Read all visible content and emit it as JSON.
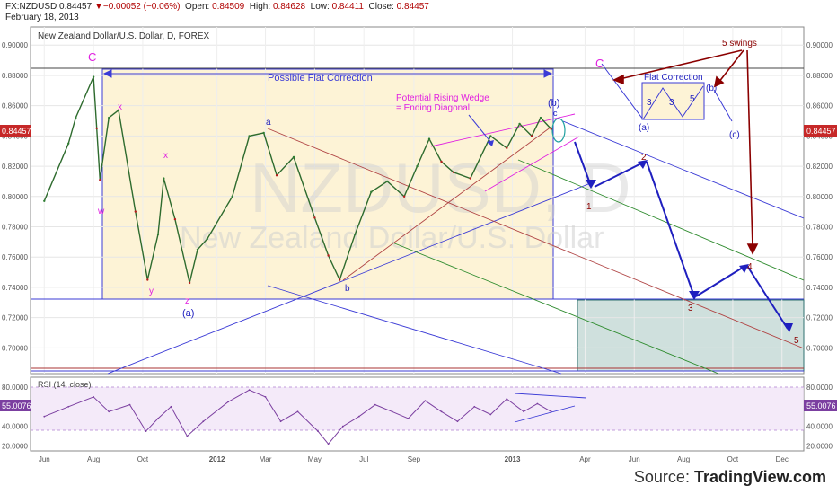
{
  "header": {
    "symbol": "FX:NZDUSD",
    "last": "0.84457",
    "change": "−0.00052 (−0.06%)",
    "open_label": "Open:",
    "open": "0.84509",
    "high_label": "High:",
    "high": "0.84628",
    "low_label": "Low:",
    "low": "0.84411",
    "close_label": "Close:",
    "close": "0.84457",
    "date": "February 18, 2013"
  },
  "chart_title": "New Zealand Dollar/U.S. Dollar, D, FOREX",
  "watermark": {
    "symbol": "NZDUSD, D",
    "name": "New Zealand Dollar/U.S. Dollar"
  },
  "price_badge": "0.84457",
  "rsi_badge": "55.0076",
  "source": {
    "prefix": "Source: ",
    "brand": "TradingView.com"
  },
  "colors": {
    "up": "#2e7d32",
    "down": "#b71c1c",
    "rsi": "#7b3fa0",
    "annotation_blue": "#1f1fbf",
    "annotation_magenta": "#e020e0",
    "annotation_red": "#8b0000"
  },
  "chart_data": [
    {
      "type": "line",
      "title": "New Zealand Dollar/U.S. Dollar, D, FOREX",
      "ylim": [
        0.683,
        0.912
      ],
      "yticks": [
        "0.90000",
        "0.88000",
        "0.86000",
        "0.84000",
        "0.82000",
        "0.80000",
        "0.78000",
        "0.76000",
        "0.74000",
        "0.72000",
        "0.70000"
      ],
      "xticks": [
        "Jun",
        "Aug",
        "Oct",
        "2012",
        "Mar",
        "May",
        "Jul",
        "Sep",
        "2013",
        "Apr",
        "Jun",
        "Aug",
        "Oct",
        "Dec"
      ],
      "x": [
        "2011-06-01",
        "2011-07-01",
        "2011-07-10",
        "2011-08-01",
        "2011-08-05",
        "2011-08-09",
        "2011-08-20",
        "2011-09-01",
        "2011-09-22",
        "2011-10-07",
        "2011-10-20",
        "2011-10-27",
        "2011-11-10",
        "2011-11-28",
        "2011-12-08",
        "2011-12-20",
        "2012-01-20",
        "2012-02-10",
        "2012-02-28",
        "2012-03-15",
        "2012-04-05",
        "2012-05-01",
        "2012-05-18",
        "2012-06-01",
        "2012-06-20",
        "2012-07-10",
        "2012-07-30",
        "2012-08-20",
        "2012-09-05",
        "2012-09-20",
        "2012-10-05",
        "2012-10-20",
        "2012-11-10",
        "2012-12-05",
        "2012-12-25",
        "2013-01-10",
        "2013-01-25",
        "2013-02-05",
        "2013-02-18"
      ],
      "series": [
        {
          "values": [
            0.797,
            0.835,
            0.852,
            0.879,
            0.845,
            0.811,
            0.852,
            0.857,
            0.79,
            0.745,
            0.775,
            0.812,
            0.785,
            0.743,
            0.765,
            0.772,
            0.8,
            0.84,
            0.842,
            0.814,
            0.826,
            0.786,
            0.761,
            0.745,
            0.775,
            0.803,
            0.81,
            0.8,
            0.82,
            0.838,
            0.823,
            0.816,
            0.812,
            0.84,
            0.832,
            0.848,
            0.84,
            0.852,
            0.8446
          ]
        }
      ],
      "annotations": {
        "c_top": "C",
        "c_projection": "C",
        "flat_correction_box": "Possible Flat Correction",
        "wedge": [
          "Potential Rising Wedge",
          "= Ending Diagonal"
        ],
        "wave_labels": [
          "x",
          "x",
          "w",
          "y",
          "z",
          "(a)",
          "a",
          "b",
          "(b)",
          "c"
        ],
        "projection_waves": [
          "1",
          "2",
          "3",
          "4",
          "5"
        ],
        "swings": "5 swings",
        "inset_title": "Flat Correction",
        "inset_labels": [
          "(a)",
          "3",
          "3",
          "5",
          "(b)",
          "(c)"
        ]
      }
    },
    {
      "type": "line",
      "title": "RSI (14, close)",
      "ylim": [
        15,
        90
      ],
      "yticks": [
        "80.0000",
        "60.0000",
        "40.0000",
        "20.0000"
      ],
      "x": [
        "2011-06-01",
        "2011-07-01",
        "2011-08-01",
        "2011-08-20",
        "2011-09-15",
        "2011-10-05",
        "2011-10-20",
        "2011-11-05",
        "2011-11-25",
        "2011-12-15",
        "2012-01-15",
        "2012-02-10",
        "2012-03-01",
        "2012-03-20",
        "2012-04-10",
        "2012-05-05",
        "2012-05-18",
        "2012-06-05",
        "2012-06-25",
        "2012-07-15",
        "2012-08-05",
        "2012-08-25",
        "2012-09-15",
        "2012-10-05",
        "2012-10-25",
        "2012-11-15",
        "2012-12-05",
        "2012-12-25",
        "2013-01-15",
        "2013-02-01",
        "2013-02-18"
      ],
      "series": [
        {
          "name": "RSI (14, close)",
          "values": [
            50,
            60,
            70,
            55,
            62,
            35,
            48,
            60,
            30,
            45,
            65,
            77,
            70,
            45,
            55,
            35,
            22,
            40,
            50,
            62,
            55,
            48,
            66,
            55,
            45,
            60,
            52,
            68,
            55,
            63,
            55
          ]
        }
      ]
    }
  ]
}
